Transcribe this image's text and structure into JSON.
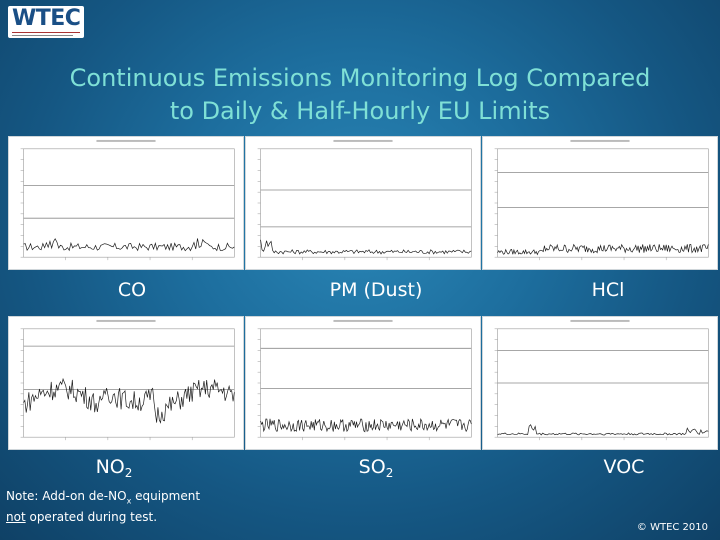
{
  "logo": {
    "text": "WTEC"
  },
  "title_line1": "Continuous Emissions Monitoring Log Compared",
  "title_line2": "to Daily & Half-Hourly EU Limits",
  "note": {
    "prefix": "Note:  Add-on de-NO",
    "sub": "x",
    "suffix": " equipment",
    "line2_underlined": "not",
    "line2_rest": " operated during test."
  },
  "copyright": "© WTEC 2010",
  "colors": {
    "limit_line": "#8a8a8a",
    "trace": "#1a1a1a",
    "title": "#7fe0d6"
  },
  "chart_data": [
    {
      "type": "line",
      "name_main": "CO",
      "name_sub": "",
      "limits": [
        0.66,
        0.36
      ],
      "pattern": "co"
    },
    {
      "type": "line",
      "name_main": "PM (Dust)",
      "name_sub": "",
      "limits": [
        0.62,
        0.28
      ],
      "pattern": "pm"
    },
    {
      "type": "line",
      "name_main": "HCl",
      "name_sub": "",
      "limits": [
        0.78,
        0.46
      ],
      "pattern": "hcl"
    },
    {
      "type": "line",
      "name_main": "NO",
      "name_sub": "2",
      "limits": [
        0.84,
        0.44
      ],
      "pattern": "no2"
    },
    {
      "type": "line",
      "name_main": "SO",
      "name_sub": "2",
      "limits": [
        0.82,
        0.45
      ],
      "pattern": "so2"
    },
    {
      "type": "line",
      "name_main": "VOC",
      "name_sub": "",
      "limits": [
        0.8,
        0.5
      ],
      "pattern": "voc"
    }
  ]
}
